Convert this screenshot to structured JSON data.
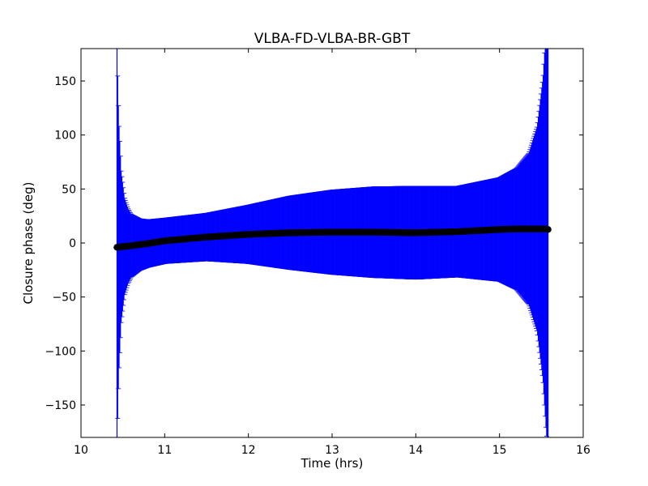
{
  "chart_data": {
    "type": "scatter",
    "title": "VLBA-FD-VLBA-BR-GBT",
    "xlabel": "Time (hrs)",
    "ylabel": "Closure phase (deg)",
    "xlim": [
      10,
      16
    ],
    "ylim": [
      -180,
      180
    ],
    "xticks": [
      10,
      11,
      12,
      13,
      14,
      15,
      16
    ],
    "yticks": [
      -150,
      -100,
      -50,
      0,
      50,
      100,
      150
    ],
    "x_start": 10.43,
    "x_end": 15.58,
    "colors": {
      "points": "#000000",
      "errorbars": "#0000ff"
    },
    "series": [
      {
        "points": [
          {
            "x": 10.43,
            "y": -4,
            "err": 186
          },
          {
            "x": 10.45,
            "y": -3.8,
            "err": 120
          },
          {
            "x": 10.48,
            "y": -3.5,
            "err": 70
          },
          {
            "x": 10.52,
            "y": -3.2,
            "err": 45
          },
          {
            "x": 10.56,
            "y": -2.9,
            "err": 35
          },
          {
            "x": 10.6,
            "y": -2.5,
            "err": 29
          },
          {
            "x": 10.7,
            "y": -1.5,
            "err": 24
          },
          {
            "x": 10.8,
            "y": -0.5,
            "err": 22
          },
          {
            "x": 11.0,
            "y": 2,
            "err": 21
          },
          {
            "x": 11.5,
            "y": 5.5,
            "err": 22
          },
          {
            "x": 12.0,
            "y": 8,
            "err": 27
          },
          {
            "x": 12.5,
            "y": 9.5,
            "err": 34
          },
          {
            "x": 13.0,
            "y": 10,
            "err": 39
          },
          {
            "x": 13.5,
            "y": 10,
            "err": 42
          },
          {
            "x": 14.0,
            "y": 9.5,
            "err": 43
          },
          {
            "x": 14.5,
            "y": 10.5,
            "err": 42
          },
          {
            "x": 15.0,
            "y": 12.5,
            "err": 48
          },
          {
            "x": 15.2,
            "y": 13,
            "err": 56
          },
          {
            "x": 15.35,
            "y": 13,
            "err": 70
          },
          {
            "x": 15.45,
            "y": 13,
            "err": 95
          },
          {
            "x": 15.52,
            "y": 13,
            "err": 140
          },
          {
            "x": 15.56,
            "y": 13,
            "err": 190
          },
          {
            "x": 15.58,
            "y": 12.5,
            "err": 200
          }
        ]
      }
    ]
  }
}
